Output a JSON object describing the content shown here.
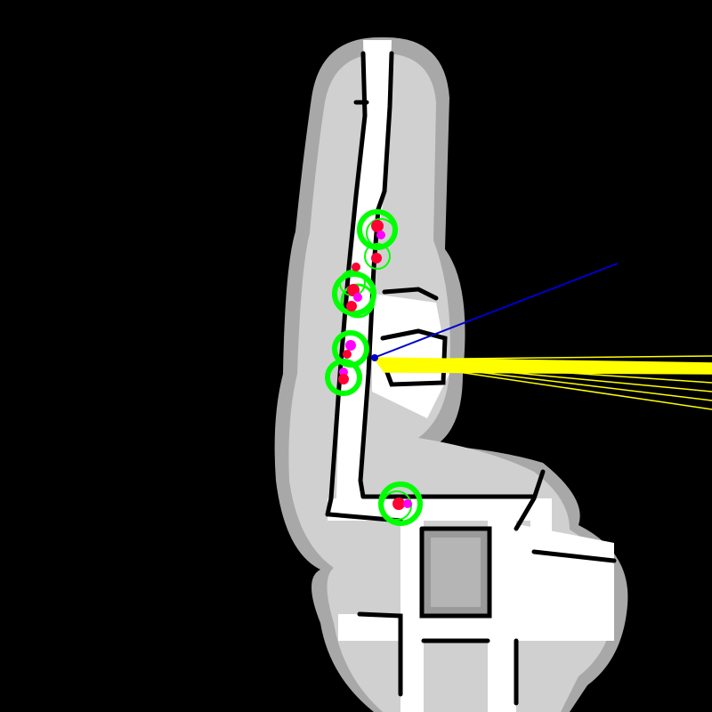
{
  "colors": {
    "background": "#000000",
    "unexplored_halo": "#a8a8a8",
    "explored_floor": "#d4d4d4",
    "free_corridor": "#ffffff",
    "wall": "#000000",
    "particle_cluster": "#00ff00",
    "detection": "#ff0033",
    "detection_inner": "#ff00ff",
    "robot_heading": "#0000cc",
    "laser_scan": "#ffff00"
  },
  "icons": {
    "robot": "robot-pose-icon",
    "detection": "person-detection-icon",
    "cluster": "particle-cluster-icon"
  }
}
